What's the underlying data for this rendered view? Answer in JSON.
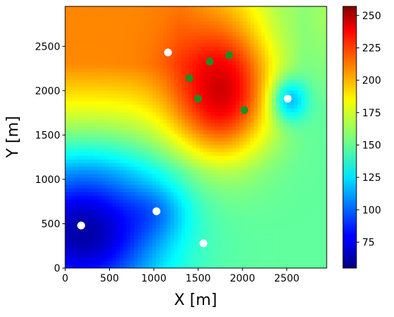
{
  "chart_data": {
    "type": "heatmap",
    "title": "",
    "xlabel": "X [m]",
    "ylabel": "Y [m]",
    "xlim": [
      0,
      2950
    ],
    "ylim": [
      0,
      2950
    ],
    "xticks": [
      0,
      500,
      1000,
      1500,
      2000,
      2500
    ],
    "yticks": [
      0,
      500,
      1000,
      1500,
      2000,
      2500
    ],
    "colorbar": {
      "colormap": "jet",
      "vmin": 55,
      "vmax": 257,
      "ticks": [
        75,
        100,
        125,
        150,
        175,
        200,
        225,
        250
      ]
    },
    "field_description_points": [
      {
        "x": 200,
        "y": 450,
        "value": 60
      },
      {
        "x": 1800,
        "y": 1950,
        "value": 250
      },
      {
        "x": 2500,
        "y": 1900,
        "value": 110
      },
      {
        "x": 300,
        "y": 2700,
        "value": 205
      },
      {
        "x": 2800,
        "y": 2700,
        "value": 165
      },
      {
        "x": 2800,
        "y": 200,
        "value": 160
      }
    ],
    "series": [
      {
        "marker": "circle",
        "color": "#ffffff",
        "points": [
          {
            "x": 1160,
            "y": 2430
          },
          {
            "x": 2510,
            "y": 1910
          },
          {
            "x": 180,
            "y": 480
          },
          {
            "x": 1030,
            "y": 640
          },
          {
            "x": 1560,
            "y": 280
          }
        ]
      },
      {
        "marker": "circle",
        "color": "#228b22",
        "points": [
          {
            "x": 1630,
            "y": 2330
          },
          {
            "x": 1850,
            "y": 2400
          },
          {
            "x": 1400,
            "y": 2140
          },
          {
            "x": 1500,
            "y": 1910
          },
          {
            "x": 2020,
            "y": 1780
          }
        ]
      }
    ]
  }
}
